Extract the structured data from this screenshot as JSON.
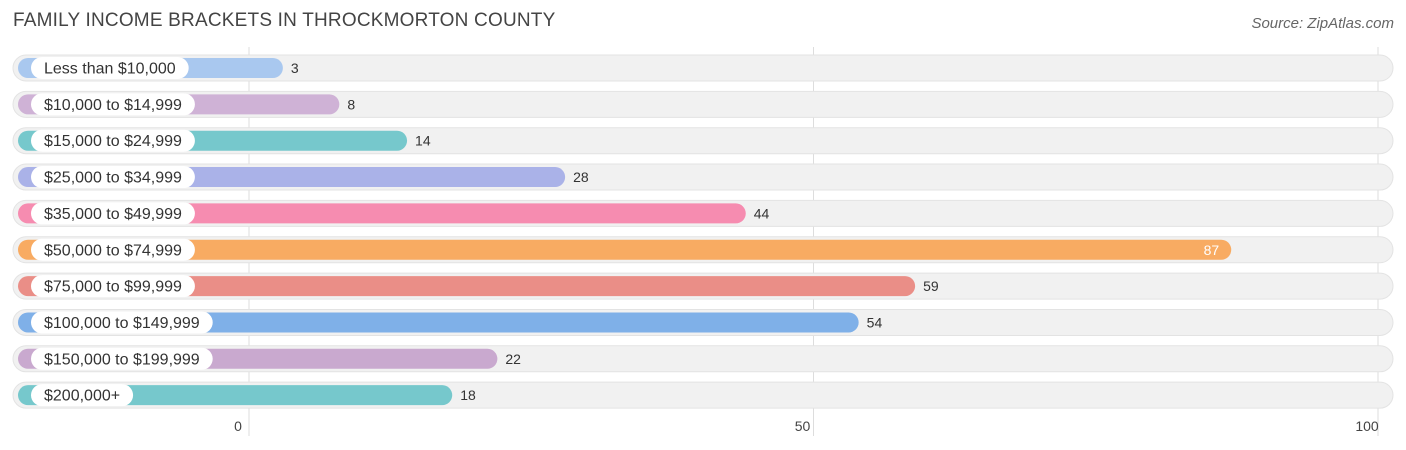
{
  "title": "FAMILY INCOME BRACKETS IN THROCKMORTON COUNTY",
  "source": "Source: ZipAtlas.com",
  "chart_data": {
    "type": "bar",
    "orientation": "horizontal",
    "title": "FAMILY INCOME BRACKETS IN THROCKMORTON COUNTY",
    "xlabel": "",
    "ylabel": "",
    "xlim": [
      0,
      100
    ],
    "x_ticks": [
      0,
      50,
      100
    ],
    "grid": true,
    "categories": [
      "Less than $10,000",
      "$10,000 to $14,999",
      "$15,000 to $24,999",
      "$25,000 to $34,999",
      "$35,000 to $49,999",
      "$50,000 to $74,999",
      "$75,000 to $99,999",
      "$100,000 to $149,999",
      "$150,000 to $199,999",
      "$200,000+"
    ],
    "values": [
      3,
      8,
      14,
      28,
      44,
      87,
      59,
      54,
      22,
      18
    ],
    "colors": [
      "#a9c8ef",
      "#cfb2d6",
      "#76c8cc",
      "#aab2e8",
      "#f68cb0",
      "#f8ab62",
      "#ea8e87",
      "#7fb0e8",
      "#c9a9cf",
      "#76c8cc"
    ]
  }
}
